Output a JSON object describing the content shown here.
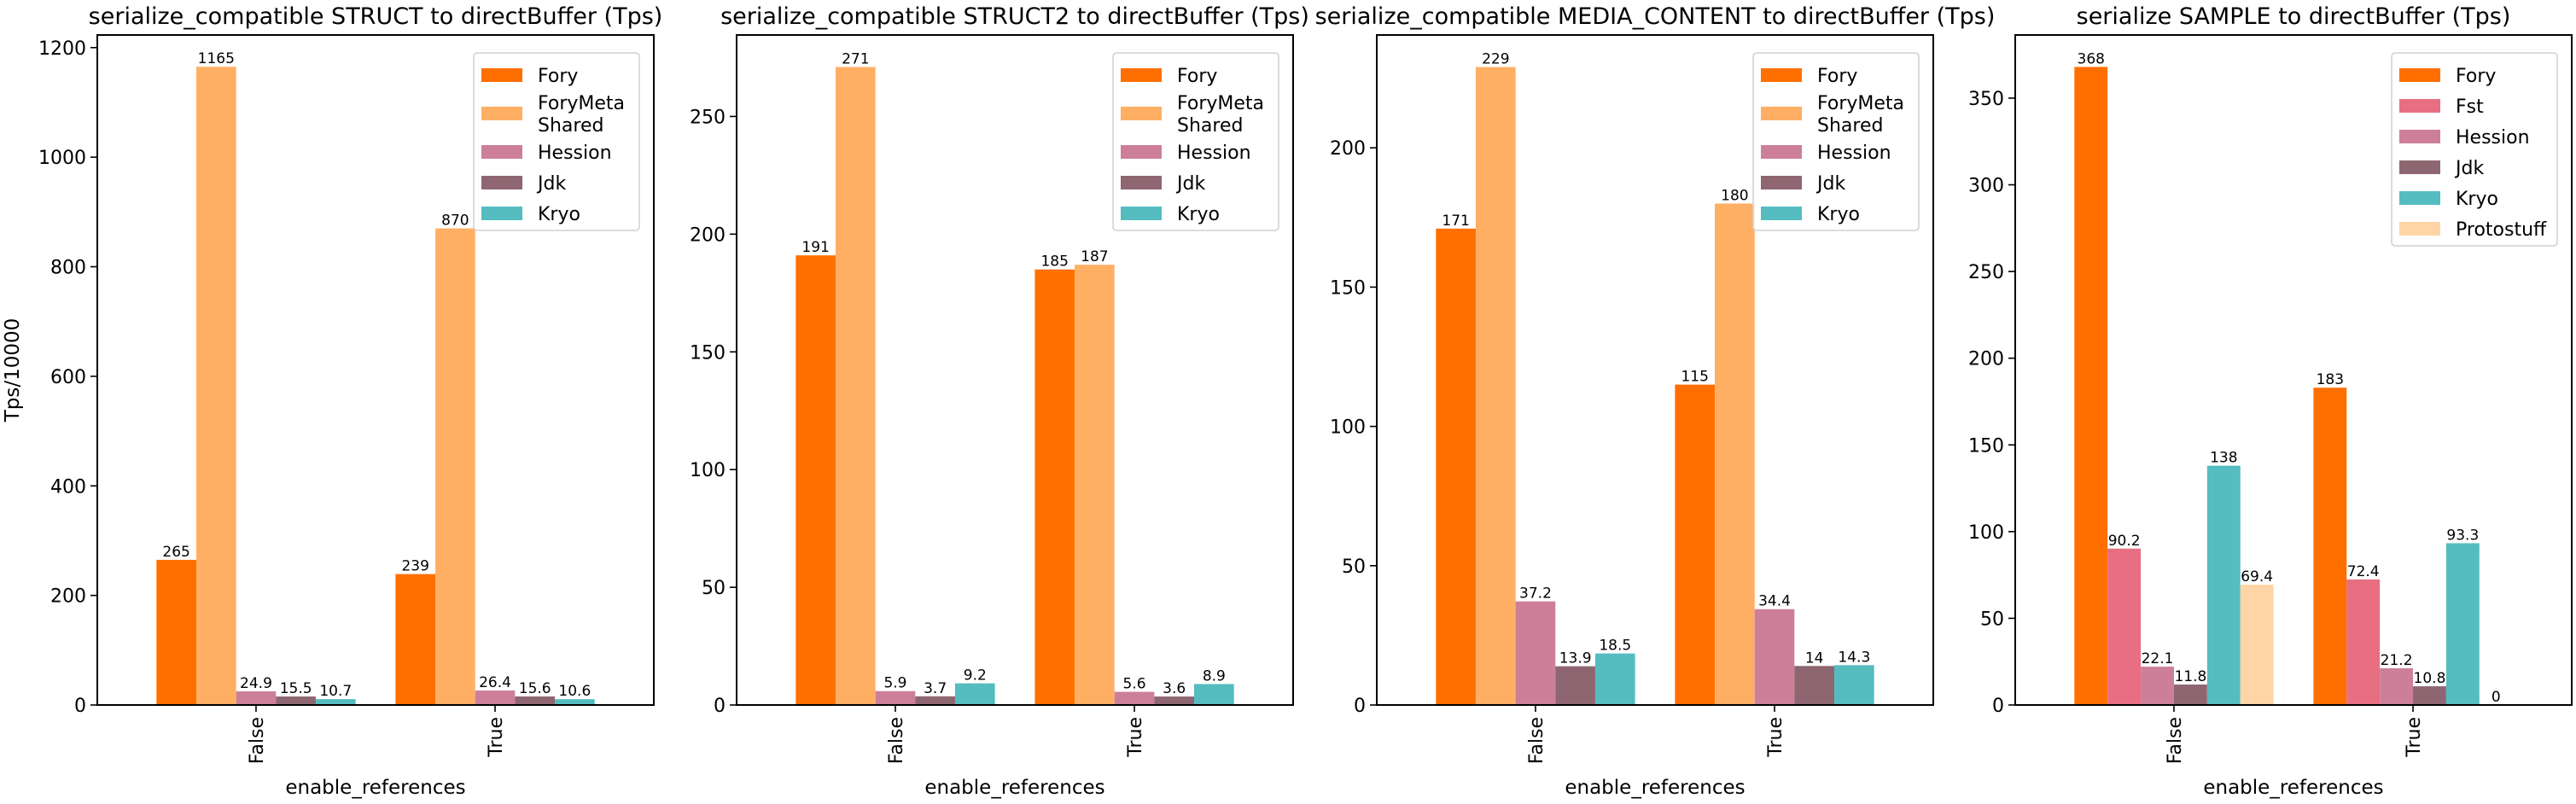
{
  "colors": {
    "Fory": "#ff6f00",
    "ForyMeta\nShared": "#ffaf64",
    "Fst": "#e76f81",
    "Hession": "#cd7f99",
    "Jdk": "#8e6672",
    "Kryo": "#55bcc0",
    "Protostuff": "#ffd5a6"
  },
  "chart_data": [
    {
      "type": "bar",
      "title": "serialize_compatible STRUCT to directBuffer (Tps)",
      "xlabel": "enable_references",
      "ylabel": "Tps/10000",
      "categories": [
        "False",
        "True"
      ],
      "ylim": [
        0,
        1223
      ],
      "yticks": [
        0,
        200,
        400,
        600,
        800,
        1000,
        1200
      ],
      "legend": "top-right",
      "grid": false,
      "series": [
        {
          "name": "Fory",
          "values": [
            265,
            239
          ]
        },
        {
          "name": "ForyMeta\nShared",
          "values": [
            1165,
            870
          ]
        },
        {
          "name": "Hession",
          "values": [
            24.9,
            26.4
          ]
        },
        {
          "name": "Jdk",
          "values": [
            15.5,
            15.6
          ]
        },
        {
          "name": "Kryo",
          "values": [
            10.7,
            10.6
          ]
        }
      ]
    },
    {
      "type": "bar",
      "title": "serialize_compatible STRUCT2 to directBuffer (Tps)",
      "xlabel": "enable_references",
      "ylabel": "",
      "categories": [
        "False",
        "True"
      ],
      "ylim": [
        0,
        284.6
      ],
      "yticks": [
        0,
        50,
        100,
        150,
        200,
        250
      ],
      "legend": "top-right",
      "grid": false,
      "series": [
        {
          "name": "Fory",
          "values": [
            191,
            185
          ]
        },
        {
          "name": "ForyMeta\nShared",
          "values": [
            271,
            187
          ]
        },
        {
          "name": "Hession",
          "values": [
            5.9,
            5.6
          ]
        },
        {
          "name": "Jdk",
          "values": [
            3.7,
            3.6
          ]
        },
        {
          "name": "Kryo",
          "values": [
            9.2,
            8.9
          ]
        }
      ]
    },
    {
      "type": "bar",
      "title": "serialize_compatible MEDIA_CONTENT to directBuffer (Tps)",
      "xlabel": "enable_references",
      "ylabel": "",
      "categories": [
        "False",
        "True"
      ],
      "ylim": [
        0,
        240.5
      ],
      "yticks": [
        0,
        50,
        100,
        150,
        200
      ],
      "legend": "top-right",
      "grid": false,
      "series": [
        {
          "name": "Fory",
          "values": [
            171,
            115
          ]
        },
        {
          "name": "ForyMeta\nShared",
          "values": [
            229,
            180
          ]
        },
        {
          "name": "Hession",
          "values": [
            37.2,
            34.4
          ]
        },
        {
          "name": "Jdk",
          "values": [
            13.9,
            14
          ]
        },
        {
          "name": "Kryo",
          "values": [
            18.5,
            14.3
          ]
        }
      ]
    },
    {
      "type": "bar",
      "title": "serialize SAMPLE to directBuffer (Tps)",
      "xlabel": "enable_references",
      "ylabel": "",
      "categories": [
        "False",
        "True"
      ],
      "ylim": [
        0,
        386.4
      ],
      "yticks": [
        0,
        50,
        100,
        150,
        200,
        250,
        300,
        350
      ],
      "legend": "top-right",
      "grid": false,
      "series": [
        {
          "name": "Fory",
          "values": [
            368,
            183
          ]
        },
        {
          "name": "Fst",
          "values": [
            90.2,
            72.4
          ]
        },
        {
          "name": "Hession",
          "values": [
            22.1,
            21.2
          ]
        },
        {
          "name": "Jdk",
          "values": [
            11.8,
            10.8
          ]
        },
        {
          "name": "Kryo",
          "values": [
            138,
            93.3
          ]
        },
        {
          "name": "Protostuff",
          "values": [
            69.4,
            0
          ]
        }
      ]
    }
  ]
}
